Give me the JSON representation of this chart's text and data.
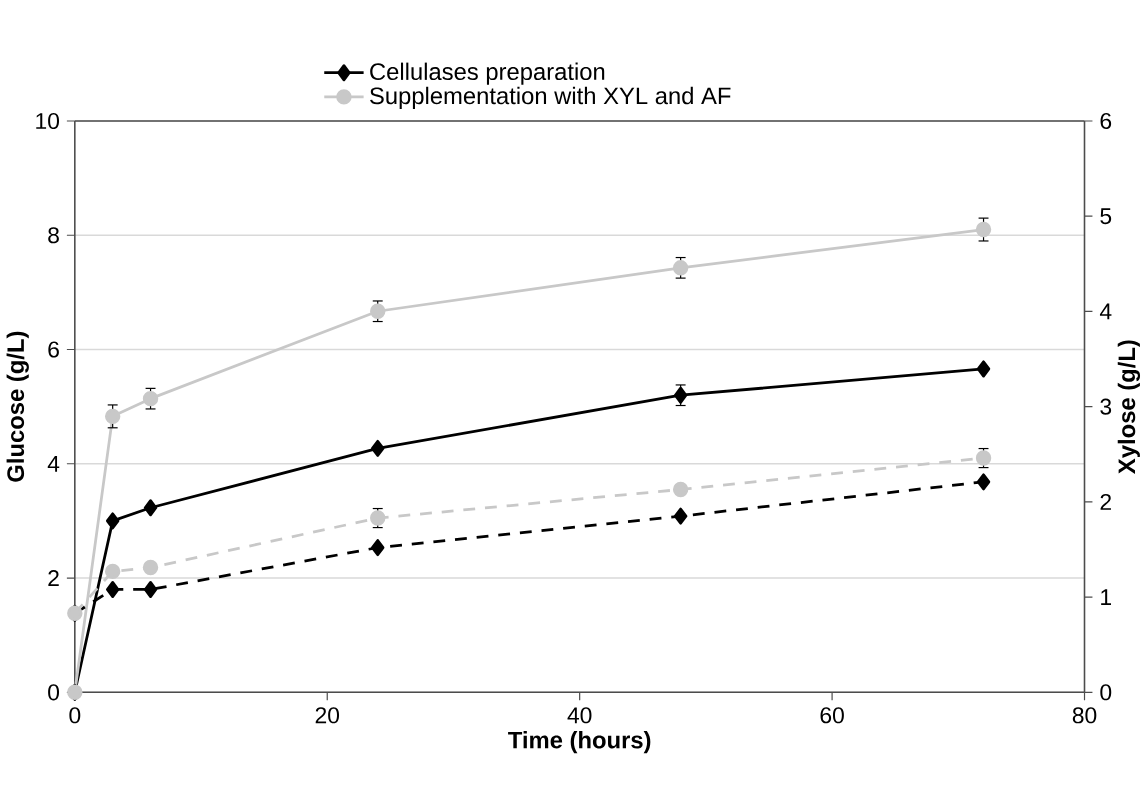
{
  "chart_data": {
    "type": "line",
    "xlabel": "Time (hours)",
    "ylabel": "Glucose (g/L)",
    "y2label": "Xylose (g/L)",
    "xlim": [
      0,
      80
    ],
    "xticks": [
      0,
      20,
      40,
      60,
      80
    ],
    "ylim": [
      0,
      10
    ],
    "yticks": [
      0,
      2,
      4,
      6,
      8,
      10
    ],
    "y2lim": [
      0,
      6
    ],
    "y2ticks": [
      0,
      1,
      2,
      3,
      4,
      5,
      6
    ],
    "grid": "y",
    "legend": "top",
    "x": [
      0,
      3,
      6,
      24,
      48,
      72
    ],
    "series": [
      {
        "name": "Cellulases preparation",
        "color": "#000000",
        "marker": "diamond",
        "line_style": "solid",
        "values": [
          0,
          3.0,
          3.23,
          4.27,
          5.2,
          5.66
        ],
        "errors": [
          null,
          null,
          null,
          null,
          0.18,
          null
        ]
      },
      {
        "name": "Supplementation with XYL and AF",
        "color": "#c8c8c8",
        "marker": "circle",
        "line_style": "solid",
        "values": [
          0,
          4.83,
          5.14,
          6.67,
          7.43,
          8.1
        ],
        "errors": [
          null,
          0.2,
          0.18,
          0.18,
          0.18,
          0.2
        ]
      },
      {
        "color": "#000000",
        "marker": "diamond",
        "line_style": "dashed",
        "axis": "y2",
        "values": [
          0.83,
          1.08,
          1.08,
          1.52,
          1.85,
          2.21
        ],
        "errors": [
          null,
          null,
          null,
          null,
          null,
          null
        ]
      },
      {
        "color": "#c8c8c8",
        "marker": "circle",
        "line_style": "dashed",
        "axis": "y2",
        "values": [
          0.83,
          1.27,
          1.31,
          1.83,
          2.13,
          2.46
        ],
        "errors": [
          null,
          null,
          null,
          0.1,
          null,
          0.1
        ]
      }
    ]
  }
}
